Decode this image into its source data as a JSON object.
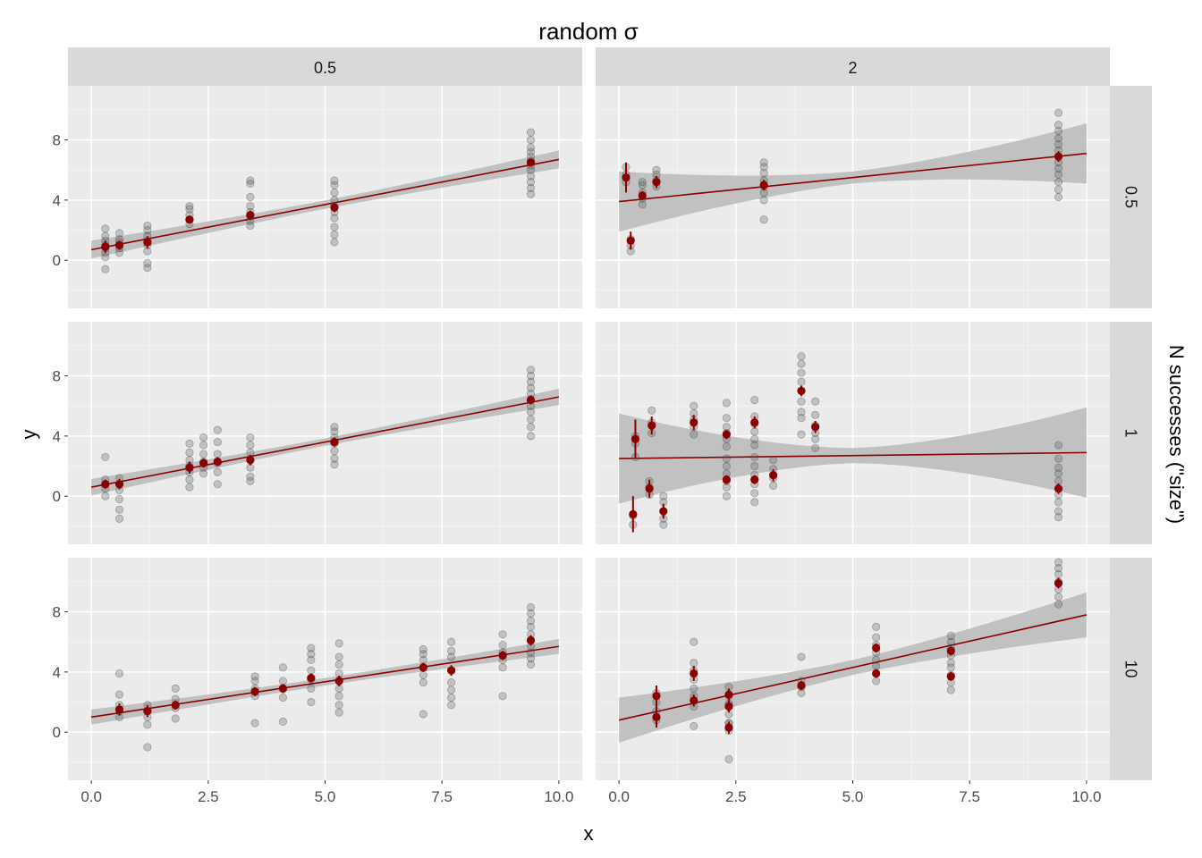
{
  "chart_data": {
    "type": "scatter",
    "title": "random σ",
    "xlabel": "x",
    "ylabel": "y",
    "col_facet_label": "random σ",
    "row_facet_label": "N successes (\"size\")",
    "col_levels": [
      "0.5",
      "2"
    ],
    "row_levels": [
      "0.5",
      "1",
      "10"
    ],
    "xlim": [
      -0.5,
      10.5
    ],
    "ylim": [
      -3.2,
      11.6
    ],
    "x_ticks": [
      0,
      2.5,
      5,
      7.5,
      10
    ],
    "x_tick_labels": [
      "0.0",
      "2.5",
      "5.0",
      "7.5",
      "10.0"
    ],
    "y_ticks": [
      0,
      4,
      8
    ],
    "y_tick_labels": [
      "0",
      "4",
      "8"
    ],
    "colors": {
      "mean_point": "#8b0000",
      "fit_line": "#8b0000",
      "ribbon": "#bdbdbd",
      "raw_point": "#555555",
      "panel_bg": "#ebebeb",
      "strip_bg": "#d9d9d9"
    },
    "grid": true,
    "panels": [
      {
        "col": 0,
        "row": 0,
        "fit": {
          "intercept": 0.7,
          "slope": 0.6,
          "band_lo": 0.28,
          "band_hi": 0.32
        },
        "groups": [
          {
            "x": 0.3,
            "mean": 0.9,
            "err": 0.4,
            "raw": [
              -0.6,
              0.2,
              0.5,
              0.8,
              1.0,
              1.3,
              1.6,
              2.1
            ]
          },
          {
            "x": 0.6,
            "mean": 1.0,
            "err": 0.3,
            "raw": [
              0.5,
              0.8,
              1.0,
              1.2,
              1.4,
              1.8
            ]
          },
          {
            "x": 1.2,
            "mean": 1.2,
            "err": 0.4,
            "raw": [
              -0.5,
              -0.2,
              0.6,
              1.0,
              1.3,
              1.6,
              2.0,
              2.3
            ]
          },
          {
            "x": 2.1,
            "mean": 2.7,
            "err": 0.25,
            "raw": [
              2.4,
              2.7,
              3.0,
              3.4,
              3.6
            ]
          },
          {
            "x": 3.4,
            "mean": 3.0,
            "err": 0.3,
            "raw": [
              2.3,
              2.6,
              2.9,
              3.2,
              3.6,
              4.2,
              5.1,
              5.3
            ]
          },
          {
            "x": 5.2,
            "mean": 3.5,
            "err": 0.3,
            "raw": [
              1.2,
              1.7,
              2.2,
              2.8,
              3.2,
              3.6,
              4.0,
              4.5,
              5.0,
              5.3
            ]
          },
          {
            "x": 9.4,
            "mean": 6.5,
            "err": 0.25,
            "raw": [
              4.4,
              4.8,
              5.2,
              5.6,
              6.0,
              6.3,
              6.6,
              6.9,
              7.2,
              7.5,
              8.0,
              8.5
            ]
          }
        ]
      },
      {
        "col": 1,
        "row": 0,
        "fit": {
          "intercept": 3.9,
          "slope": 0.32,
          "band_lo": 0.4,
          "band_hi": 1.6
        },
        "groups": [
          {
            "x": 0.15,
            "mean": 5.5,
            "err": 1.0,
            "raw": [
              5.2,
              5.7,
              6.2
            ]
          },
          {
            "x": 0.25,
            "mean": 1.3,
            "err": 0.6,
            "raw": [
              0.6,
              1.0,
              1.4
            ]
          },
          {
            "x": 0.5,
            "mean": 4.3,
            "err": 0.3,
            "raw": [
              3.7,
              4.1,
              4.5,
              5.0,
              5.2
            ]
          },
          {
            "x": 0.8,
            "mean": 5.2,
            "err": 0.4,
            "raw": [
              4.9,
              5.3,
              5.7,
              6.0
            ]
          },
          {
            "x": 3.1,
            "mean": 5.0,
            "err": 0.35,
            "raw": [
              2.7,
              4.0,
              4.5,
              4.9,
              5.3,
              5.8,
              6.2,
              6.5
            ]
          },
          {
            "x": 9.4,
            "mean": 6.9,
            "err": 0.35,
            "raw": [
              4.2,
              4.7,
              5.2,
              5.7,
              6.1,
              6.5,
              6.9,
              7.3,
              7.7,
              8.1,
              8.6,
              9.0,
              9.8
            ]
          }
        ]
      },
      {
        "col": 0,
        "row": 1,
        "fit": {
          "intercept": 0.6,
          "slope": 0.6,
          "band_lo": 0.25,
          "band_hi": 0.3
        },
        "groups": [
          {
            "x": 0.3,
            "mean": 0.8,
            "err": 0.3,
            "raw": [
              0.0,
              0.5,
              0.8,
              1.1,
              2.6
            ]
          },
          {
            "x": 0.6,
            "mean": 0.8,
            "err": 0.35,
            "raw": [
              -1.5,
              -0.9,
              -0.2,
              0.4,
              0.8,
              1.2
            ]
          },
          {
            "x": 2.1,
            "mean": 1.9,
            "err": 0.4,
            "raw": [
              0.6,
              1.1,
              1.6,
              2.0,
              2.4,
              2.9,
              3.5
            ]
          },
          {
            "x": 2.4,
            "mean": 2.2,
            "err": 0.3,
            "raw": [
              1.5,
              1.9,
              2.3,
              2.8,
              3.4,
              3.9
            ]
          },
          {
            "x": 2.7,
            "mean": 2.3,
            "err": 0.3,
            "raw": [
              0.8,
              1.6,
              2.2,
              2.8,
              3.6,
              4.4
            ]
          },
          {
            "x": 3.4,
            "mean": 2.4,
            "err": 0.35,
            "raw": [
              1.0,
              1.3,
              1.9,
              2.4,
              2.9,
              3.4,
              3.9
            ]
          },
          {
            "x": 5.2,
            "mean": 3.6,
            "err": 0.3,
            "raw": [
              2.1,
              2.5,
              3.0,
              3.5,
              3.9,
              4.3,
              4.6
            ]
          },
          {
            "x": 9.4,
            "mean": 6.4,
            "err": 0.3,
            "raw": [
              4.0,
              4.6,
              5.1,
              5.6,
              6.0,
              6.4,
              6.8,
              7.2,
              7.6,
              8.0,
              8.4
            ]
          }
        ]
      },
      {
        "col": 1,
        "row": 1,
        "fit": {
          "intercept": 2.5,
          "slope": 0.04,
          "band_lo": 0.5,
          "band_hi": 2.5
        },
        "groups": [
          {
            "x": 0.3,
            "mean": -1.2,
            "err": 1.2,
            "raw": [
              -1.9,
              -1.3
            ]
          },
          {
            "x": 0.35,
            "mean": 3.8,
            "err": 1.3,
            "raw": [
              2.6,
              3.5,
              4.0
            ]
          },
          {
            "x": 0.65,
            "mean": 0.5,
            "err": 0.6,
            "raw": [
              0.1,
              0.6,
              1.0
            ]
          },
          {
            "x": 0.7,
            "mean": 4.7,
            "err": 0.6,
            "raw": [
              4.2,
              4.9,
              5.7
            ]
          },
          {
            "x": 0.95,
            "mean": -1.0,
            "err": 0.5,
            "raw": [
              -1.9,
              -1.5,
              -0.4,
              0.0
            ]
          },
          {
            "x": 1.6,
            "mean": 4.9,
            "err": 0.5,
            "raw": [
              4.1,
              4.6,
              5.1,
              5.5,
              6.0
            ]
          },
          {
            "x": 2.3,
            "mean": 4.1,
            "err": 0.3,
            "raw": [
              3.3,
              3.8,
              4.2,
              4.6,
              5.2,
              6.2
            ]
          },
          {
            "x": 2.3,
            "mean": 1.1,
            "err": 0.3,
            "raw": [
              0.0,
              0.6,
              1.0,
              1.5,
              2.0,
              2.5
            ]
          },
          {
            "x": 2.9,
            "mean": 4.9,
            "err": 0.4,
            "raw": [
              3.8,
              4.3,
              4.8,
              5.3,
              6.4
            ]
          },
          {
            "x": 2.9,
            "mean": 1.1,
            "err": 0.3,
            "raw": [
              -0.4,
              0.2,
              0.8,
              1.4,
              2.0,
              2.6,
              3.4
            ]
          },
          {
            "x": 3.3,
            "mean": 1.4,
            "err": 0.4,
            "raw": [
              0.7,
              1.2,
              1.8,
              2.4
            ]
          },
          {
            "x": 3.9,
            "mean": 7.0,
            "err": 0.35,
            "raw": [
              4.1,
              5.2,
              5.6,
              6.3,
              7.0,
              7.6,
              8.2,
              8.8,
              9.3
            ]
          },
          {
            "x": 4.2,
            "mean": 4.6,
            "err": 0.4,
            "raw": [
              3.2,
              3.8,
              4.2,
              4.7,
              5.4,
              6.3
            ]
          },
          {
            "x": 9.4,
            "mean": 0.5,
            "err": 0.35,
            "raw": [
              -1.4,
              -1.0,
              -0.4,
              0.1,
              0.5,
              1.0,
              1.5,
              1.9,
              2.5,
              3.4
            ]
          }
        ]
      },
      {
        "col": 0,
        "row": 2,
        "fit": {
          "intercept": 1.0,
          "slope": 0.47,
          "band_lo": 0.25,
          "band_hi": 0.25
        },
        "groups": [
          {
            "x": 0.6,
            "mean": 1.5,
            "err": 0.4,
            "raw": [
              1.0,
              1.4,
              1.8,
              2.5,
              3.9
            ]
          },
          {
            "x": 1.2,
            "mean": 1.4,
            "err": 0.4,
            "raw": [
              -1.0,
              0.5,
              1.0,
              1.4,
              1.8
            ]
          },
          {
            "x": 1.8,
            "mean": 1.8,
            "err": 0.3,
            "raw": [
              0.9,
              1.6,
              2.2,
              2.9
            ]
          },
          {
            "x": 3.5,
            "mean": 2.7,
            "err": 0.3,
            "raw": [
              0.6,
              2.4,
              2.9,
              3.4,
              3.7
            ]
          },
          {
            "x": 4.1,
            "mean": 2.9,
            "err": 0.3,
            "raw": [
              0.7,
              2.3,
              2.9,
              3.4,
              4.3
            ]
          },
          {
            "x": 4.7,
            "mean": 3.6,
            "err": 0.3,
            "raw": [
              2.0,
              2.9,
              3.5,
              4.1,
              4.8,
              5.2,
              5.6
            ]
          },
          {
            "x": 5.3,
            "mean": 3.4,
            "err": 0.35,
            "raw": [
              1.3,
              1.8,
              2.4,
              2.9,
              3.4,
              3.9,
              4.5,
              5.0,
              5.9
            ]
          },
          {
            "x": 7.1,
            "mean": 4.3,
            "err": 0.3,
            "raw": [
              1.2,
              3.3,
              3.8,
              4.3,
              4.8,
              5.2,
              5.5
            ]
          },
          {
            "x": 7.7,
            "mean": 4.1,
            "err": 0.35,
            "raw": [
              1.8,
              2.3,
              2.8,
              3.3,
              4.1,
              5.0,
              5.4,
              6.0
            ]
          },
          {
            "x": 8.8,
            "mean": 5.1,
            "err": 0.3,
            "raw": [
              2.4,
              4.3,
              4.8,
              5.3,
              5.8,
              6.5
            ]
          },
          {
            "x": 9.4,
            "mean": 6.1,
            "err": 0.35,
            "raw": [
              4.5,
              4.9,
              5.3,
              5.7,
              6.1,
              6.5,
              7.0,
              7.4,
              7.9,
              8.3
            ]
          }
        ]
      },
      {
        "col": 1,
        "row": 2,
        "fit": {
          "intercept": 0.8,
          "slope": 0.7,
          "band_lo": 0.5,
          "band_hi": 1.0
        },
        "groups": [
          {
            "x": 0.8,
            "mean": 2.4,
            "err": 0.7,
            "raw": [
              2.0,
              2.6
            ]
          },
          {
            "x": 0.8,
            "mean": 1.0,
            "err": 0.7,
            "raw": [
              0.8,
              1.4
            ]
          },
          {
            "x": 1.6,
            "mean": 3.9,
            "err": 0.5,
            "raw": [
              2.9,
              3.5,
              4.1,
              4.6,
              6.0
            ]
          },
          {
            "x": 1.6,
            "mean": 2.1,
            "err": 0.4,
            "raw": [
              0.4,
              1.7,
              2.4
            ]
          },
          {
            "x": 2.35,
            "mean": 2.5,
            "err": 0.4,
            "raw": [
              1.8,
              2.4,
              3.0
            ]
          },
          {
            "x": 2.35,
            "mean": 1.7,
            "err": 0.4,
            "raw": [
              0.6,
              1.2,
              1.9
            ]
          },
          {
            "x": 2.35,
            "mean": 0.3,
            "err": 0.4,
            "raw": [
              -1.8,
              0.1,
              0.6
            ]
          },
          {
            "x": 3.9,
            "mean": 3.1,
            "err": 0.3,
            "raw": [
              2.6,
              3.0,
              3.4,
              5.0
            ]
          },
          {
            "x": 5.5,
            "mean": 5.6,
            "err": 0.3,
            "raw": [
              4.8,
              5.3,
              5.8,
              6.3,
              7.0
            ]
          },
          {
            "x": 5.5,
            "mean": 3.9,
            "err": 0.3,
            "raw": [
              3.4,
              3.9,
              4.4
            ]
          },
          {
            "x": 7.1,
            "mean": 5.4,
            "err": 0.3,
            "raw": [
              4.6,
              5.1,
              5.6,
              6.0,
              6.4
            ]
          },
          {
            "x": 7.1,
            "mean": 3.7,
            "err": 0.3,
            "raw": [
              2.8,
              3.3,
              3.8,
              4.3
            ]
          },
          {
            "x": 9.4,
            "mean": 9.9,
            "err": 0.35,
            "raw": [
              8.5,
              9.0,
              9.5,
              10.0,
              10.5,
              10.9,
              11.3
            ]
          }
        ]
      }
    ]
  }
}
